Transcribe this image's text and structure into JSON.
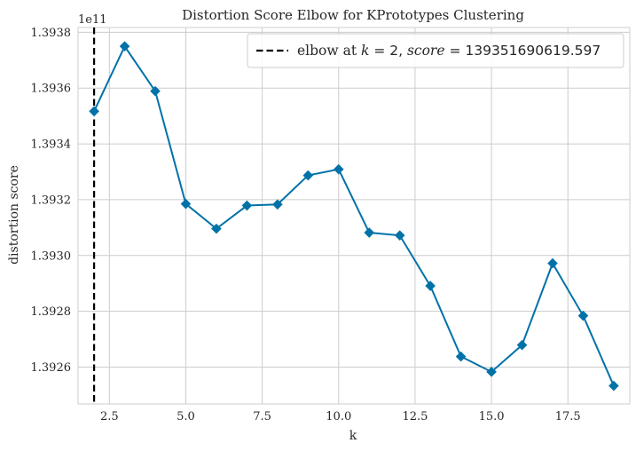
{
  "chart_data": {
    "type": "line",
    "title": "Distortion Score Elbow for KPrototypes Clustering",
    "xlabel": "k",
    "ylabel": "distortion score",
    "y_offset_label": "1e11",
    "x": [
      2,
      3,
      4,
      5,
      6,
      7,
      8,
      9,
      10,
      11,
      12,
      13,
      14,
      15,
      16,
      17,
      18,
      19
    ],
    "series": [
      {
        "values": [
          1.39351690619597,
          1.3937496,
          1.393589,
          1.393185,
          1.393096,
          1.393179,
          1.393183,
          1.393287,
          1.393309,
          1.393082,
          1.393072,
          1.392891,
          1.392638,
          1.392583,
          1.392679,
          1.392972,
          1.392784,
          1.392533
        ],
        "color": "#0072a8",
        "marker": "diamond"
      }
    ],
    "xlim": [
      1.475,
      19.525
    ],
    "ylim": [
      1.392468,
      1.393817
    ],
    "x_ticks": [
      2.5,
      5.0,
      7.5,
      10.0,
      12.5,
      15.0,
      17.5
    ],
    "x_tick_labels": [
      "2.5",
      "5.0",
      "7.5",
      "10.0",
      "12.5",
      "15.0",
      "17.5"
    ],
    "y_ticks": [
      1.3926,
      1.3928,
      1.393,
      1.3932,
      1.3934,
      1.3936,
      1.3938
    ],
    "y_tick_labels": [
      "1.3926",
      "1.3928",
      "1.3930",
      "1.3932",
      "1.3934",
      "1.3936",
      "1.3938"
    ],
    "grid": true,
    "elbow": {
      "k": 2,
      "color": "#000000",
      "legend_prefix": "elbow at ",
      "legend_k": "k",
      "legend_eq1": " = 2, ",
      "legend_score": "score",
      "legend_eq2": " = 139351690619.597"
    },
    "legend_position": "upper-right"
  }
}
